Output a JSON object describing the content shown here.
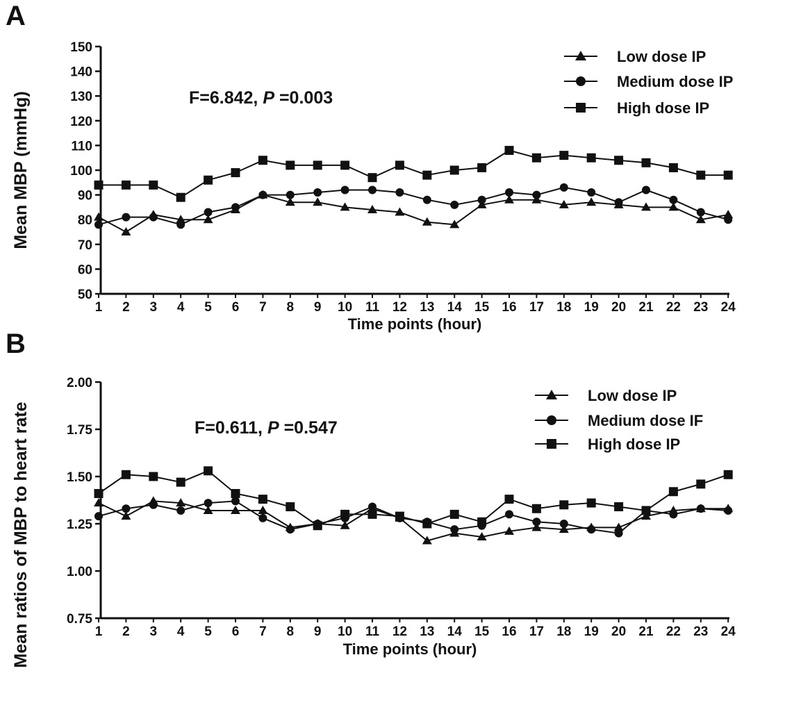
{
  "panels": [
    {
      "letter": "A"
    },
    {
      "letter": "B"
    }
  ],
  "chart_data": [
    {
      "type": "line",
      "xlabel": "Time points (hour)",
      "ylabel": "Mean MBP (mmHg)",
      "ylim": [
        50,
        150
      ],
      "yticks": [
        "50",
        "60",
        "70",
        "80",
        "90",
        "100",
        "110",
        "120",
        "130",
        "140",
        "150"
      ],
      "x": [
        "1",
        "2",
        "3",
        "4",
        "5",
        "6",
        "7",
        "8",
        "9",
        "10",
        "11",
        "12",
        "13",
        "14",
        "15",
        "16",
        "17",
        "18",
        "19",
        "20",
        "21",
        "22",
        "23",
        "24"
      ],
      "annotation": {
        "prefix": "F=6.842, ",
        "p_symbol": "P",
        "suffix": " =0.003"
      },
      "legend_position": "top-right",
      "grid": false,
      "series": [
        {
          "name": "Low dose IP",
          "marker": "triangle",
          "values": [
            81,
            75,
            82,
            80,
            80,
            84,
            90,
            87,
            87,
            85,
            84,
            83,
            79,
            78,
            86,
            88,
            88,
            86,
            87,
            86,
            85,
            85,
            80,
            82
          ]
        },
        {
          "name": "Medium dose IP",
          "marker": "circle",
          "values": [
            78,
            81,
            81,
            78,
            83,
            85,
            90,
            90,
            91,
            92,
            92,
            91,
            88,
            86,
            88,
            91,
            90,
            93,
            91,
            87,
            92,
            88,
            83,
            80
          ]
        },
        {
          "name": "High dose IP",
          "marker": "square",
          "values": [
            94,
            94,
            94,
            89,
            96,
            99,
            104,
            102,
            102,
            102,
            97,
            102,
            98,
            100,
            101,
            108,
            105,
            106,
            105,
            104,
            103,
            101,
            98,
            98
          ]
        }
      ]
    },
    {
      "type": "line",
      "xlabel": "Time points (hour)",
      "ylabel": "Mean ratios of MBP to heart rate",
      "ylim": [
        0.75,
        2.0
      ],
      "yticks": [
        "0.75",
        "1.00",
        "1.25",
        "1.50",
        "1.75",
        "2.00"
      ],
      "x": [
        "1",
        "2",
        "3",
        "4",
        "5",
        "6",
        "7",
        "8",
        "9",
        "10",
        "11",
        "12",
        "13",
        "14",
        "15",
        "16",
        "17",
        "18",
        "19",
        "20",
        "21",
        "22",
        "23",
        "24"
      ],
      "annotation": {
        "prefix": "F=0.611, ",
        "p_symbol": "P",
        "suffix": " =0.547"
      },
      "legend_position": "top-right",
      "grid": false,
      "series": [
        {
          "name": "Low dose IP",
          "marker": "triangle",
          "values": [
            1.36,
            1.29,
            1.37,
            1.36,
            1.32,
            1.32,
            1.32,
            1.23,
            1.25,
            1.24,
            1.33,
            1.28,
            1.16,
            1.2,
            1.18,
            1.21,
            1.23,
            1.22,
            1.23,
            1.23,
            1.29,
            1.32,
            1.33,
            1.33
          ]
        },
        {
          "name": "Medium dose IF",
          "marker": "circle",
          "values": [
            1.29,
            1.33,
            1.35,
            1.32,
            1.36,
            1.37,
            1.28,
            1.22,
            1.25,
            1.28,
            1.34,
            1.28,
            1.26,
            1.22,
            1.24,
            1.3,
            1.26,
            1.25,
            1.22,
            1.2,
            1.32,
            1.3,
            1.33,
            1.32
          ]
        },
        {
          "name": "High dose IP",
          "marker": "square",
          "values": [
            1.41,
            1.51,
            1.5,
            1.47,
            1.53,
            1.41,
            1.38,
            1.34,
            1.24,
            1.3,
            1.3,
            1.29,
            1.25,
            1.3,
            1.26,
            1.38,
            1.33,
            1.35,
            1.36,
            1.34,
            1.32,
            1.42,
            1.46,
            1.51
          ]
        }
      ]
    }
  ]
}
